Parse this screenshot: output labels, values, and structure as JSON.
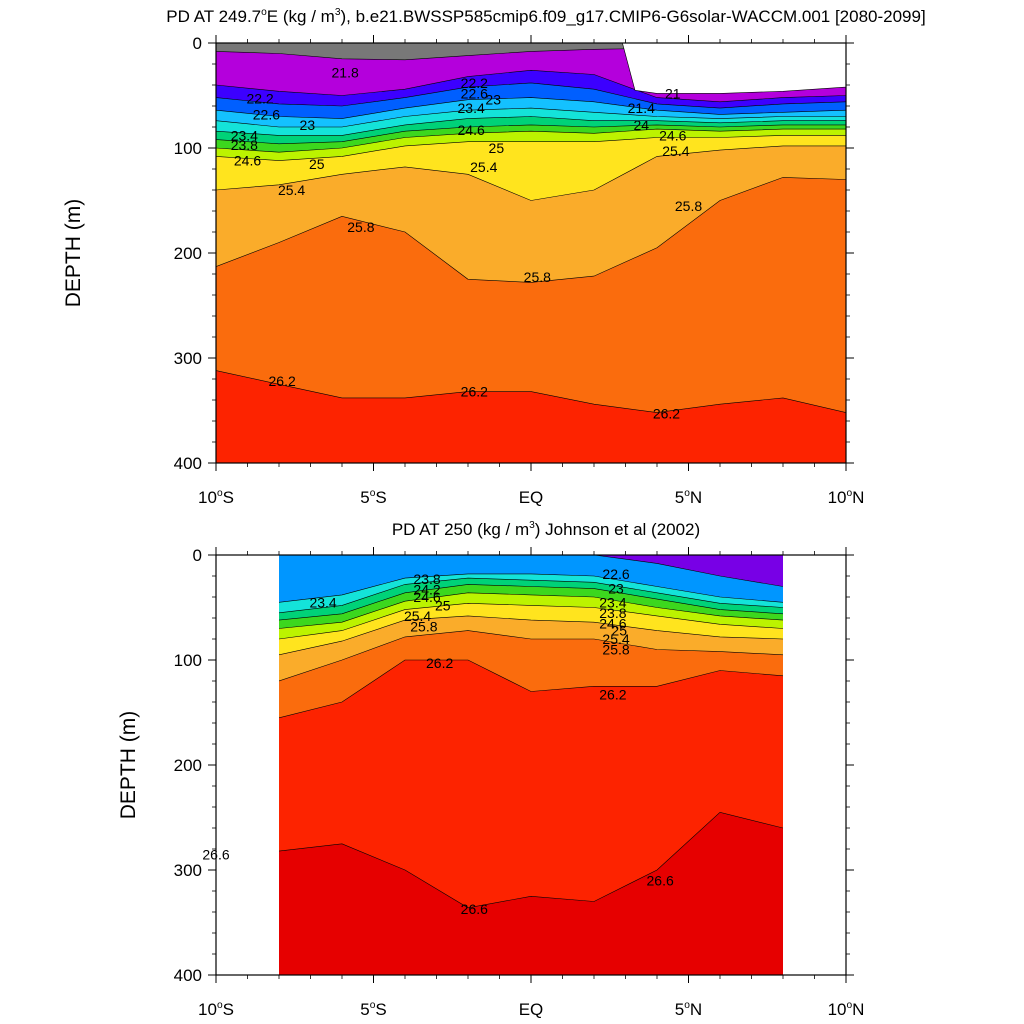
{
  "figure": {
    "background": "#ffffff"
  },
  "chart_data": [
    {
      "type": "contour",
      "title_parts": [
        "PD AT 249.7",
        "o",
        "E (kg / m",
        "3",
        "), b.e21.BWSSP585cmip6.f09_g17.CMIP6-G6solar-WACCM.001 [2080-2099]"
      ],
      "xlabel": "",
      "ylabel": "DEPTH (m)",
      "xlim": [
        -10,
        10
      ],
      "ylim": [
        400,
        0
      ],
      "x_ticks": [
        {
          "value": -10,
          "parts": [
            "10",
            "o",
            "S"
          ]
        },
        {
          "value": -5,
          "parts": [
            "5",
            "o",
            "S"
          ]
        },
        {
          "value": 0,
          "parts": [
            "EQ"
          ]
        },
        {
          "value": 5,
          "parts": [
            "5",
            "o",
            "N"
          ]
        },
        {
          "value": 10,
          "parts": [
            "10",
            "o",
            "N"
          ]
        }
      ],
      "y_ticks": [
        0,
        100,
        200,
        300,
        400
      ],
      "x_extent": [
        -10,
        10
      ],
      "data_mask_top": [
        [
          2.9,
          0
        ],
        [
          3.3,
          45
        ],
        [
          4,
          48
        ],
        [
          6,
          48
        ],
        [
          8,
          46
        ],
        [
          10,
          42
        ]
      ],
      "levels": [
        21.0,
        21.2,
        21.4,
        21.6,
        21.8,
        22.0,
        22.2,
        22.4,
        22.6,
        22.8,
        23.0,
        23.2,
        23.4,
        23.6,
        23.8,
        24.0,
        24.2,
        24.4,
        24.6,
        24.8,
        25.0,
        25.2,
        25.4,
        25.6,
        25.8,
        26.0,
        26.2,
        26.4,
        26.6
      ],
      "contour_depths": {
        "x": [
          -10,
          -8,
          -6,
          -4,
          -2,
          0,
          2,
          4,
          6,
          8,
          10
        ],
        "iso": [
          {
            "value": 21.8,
            "depth": [
              8,
              10,
              15,
              16,
              12,
              8,
              6,
              5,
              4,
              4,
              4
            ]
          },
          {
            "value": 22.2,
            "depth": [
              40,
              46,
              50,
              44,
              32,
              26,
              30,
              52,
              56,
              52,
              50
            ]
          },
          {
            "value": 22.6,
            "depth": [
              52,
              58,
              60,
              52,
              42,
              38,
              44,
              58,
              62,
              58,
              56
            ]
          },
          {
            "value": 23.0,
            "depth": [
              64,
              70,
              72,
              62,
              54,
              52,
              56,
              64,
              68,
              66,
              64
            ]
          },
          {
            "value": 23.4,
            "depth": [
              74,
              80,
              80,
              70,
              64,
              62,
              66,
              70,
              72,
              70,
              70
            ]
          },
          {
            "value": 23.8,
            "depth": [
              84,
              88,
              88,
              78,
              72,
              70,
              74,
              74,
              76,
              74,
              74
            ]
          },
          {
            "value": 24.2,
            "depth": [
              92,
              96,
              94,
              84,
              80,
              78,
              80,
              78,
              80,
              78,
              78
            ]
          },
          {
            "value": 24.6,
            "depth": [
              100,
              104,
              100,
              90,
              86,
              84,
              86,
              82,
              84,
              82,
              82
            ]
          },
          {
            "value": 25.0,
            "depth": [
              108,
              112,
              108,
              98,
              94,
              94,
              94,
              90,
              90,
              88,
              88
            ]
          },
          {
            "value": 25.4,
            "depth": [
              140,
              135,
              125,
              118,
              125,
              150,
              140,
              108,
              102,
              98,
              98
            ]
          },
          {
            "value": 25.8,
            "depth": [
              213,
              190,
              165,
              180,
              225,
              228,
              222,
              195,
              150,
              128,
              130
            ]
          },
          {
            "value": 26.2,
            "depth": [
              312,
              325,
              338,
              338,
              332,
              332,
              344,
              352,
              344,
              338,
              352
            ]
          }
        ]
      },
      "contour_labels": [
        {
          "text": "21.8",
          "x": -5.9,
          "depth": 28
        },
        {
          "text": "22.2",
          "x": -8.6,
          "depth": 53
        },
        {
          "text": "22.2",
          "x": -1.8,
          "depth": 38
        },
        {
          "text": "22.6",
          "x": -8.4,
          "depth": 68
        },
        {
          "text": "22.6",
          "x": -1.8,
          "depth": 48
        },
        {
          "text": "23",
          "x": -7.1,
          "depth": 78
        },
        {
          "text": "23",
          "x": -1.2,
          "depth": 54
        },
        {
          "text": "23.4",
          "x": -9.1,
          "depth": 88
        },
        {
          "text": "23.4",
          "x": -1.9,
          "depth": 62
        },
        {
          "text": "23.8",
          "x": -9.1,
          "depth": 97
        },
        {
          "text": "24.6",
          "x": -9.0,
          "depth": 112
        },
        {
          "text": "24.6",
          "x": -1.9,
          "depth": 83
        },
        {
          "text": "25",
          "x": -6.8,
          "depth": 115
        },
        {
          "text": "25",
          "x": -1.1,
          "depth": 100
        },
        {
          "text": "25.4",
          "x": -7.6,
          "depth": 140
        },
        {
          "text": "25.4",
          "x": -1.5,
          "depth": 118
        },
        {
          "text": "25.4",
          "x": 4.6,
          "depth": 103
        },
        {
          "text": "25.8",
          "x": -5.4,
          "depth": 175
        },
        {
          "text": "25.8",
          "x": 0.2,
          "depth": 223
        },
        {
          "text": "25.8",
          "x": 5.0,
          "depth": 155
        },
        {
          "text": "26.2",
          "x": -7.9,
          "depth": 322
        },
        {
          "text": "26.2",
          "x": -1.8,
          "depth": 332
        },
        {
          "text": "26.2",
          "x": 4.3,
          "depth": 353
        },
        {
          "text": "21",
          "x": 4.5,
          "depth": 48
        },
        {
          "text": "21.4",
          "x": 3.5,
          "depth": 62
        },
        {
          "text": "24",
          "x": 3.5,
          "depth": 78
        },
        {
          "text": "24.6",
          "x": 4.5,
          "depth": 88
        }
      ]
    },
    {
      "type": "contour",
      "title_parts": [
        "PD AT 250 (kg / m",
        "3",
        ") Johnson et al (2002)"
      ],
      "xlabel": "",
      "ylabel": "DEPTH (m)",
      "xlim": [
        -10,
        10
      ],
      "ylim": [
        400,
        0
      ],
      "x_ticks": [
        {
          "value": -10,
          "parts": [
            "10",
            "o",
            "S"
          ]
        },
        {
          "value": -5,
          "parts": [
            "5",
            "o",
            "S"
          ]
        },
        {
          "value": 0,
          "parts": [
            "EQ"
          ]
        },
        {
          "value": 5,
          "parts": [
            "5",
            "o",
            "N"
          ]
        },
        {
          "value": 10,
          "parts": [
            "10",
            "o",
            "N"
          ]
        }
      ],
      "y_ticks": [
        0,
        100,
        200,
        300,
        400
      ],
      "x_extent": [
        -8,
        8
      ],
      "levels": [
        21.0,
        21.4,
        21.8,
        22.2,
        22.6,
        23.0,
        23.4,
        23.8,
        24.2,
        24.6,
        25.0,
        25.4,
        25.8,
        26.2,
        26.6
      ],
      "contour_depths": {
        "x": [
          -8,
          -6,
          -4,
          -2,
          0,
          2,
          4,
          6,
          8
        ],
        "iso": [
          {
            "value": 22.6,
            "depth": [
              0,
              0,
              0,
              0,
              0,
              0,
              8,
              20,
              30
            ]
          },
          {
            "value": 23.4,
            "depth": [
              45,
              38,
              22,
              18,
              18,
              20,
              30,
              40,
              45
            ]
          },
          {
            "value": 23.8,
            "depth": [
              55,
              48,
              28,
              22,
              24,
              26,
              36,
              46,
              50
            ]
          },
          {
            "value": 24.2,
            "depth": [
              62,
              56,
              36,
              28,
              30,
              32,
              42,
              52,
              56
            ]
          },
          {
            "value": 24.6,
            "depth": [
              70,
              64,
              44,
              36,
              38,
              40,
              50,
              58,
              62
            ]
          },
          {
            "value": 25.0,
            "depth": [
              80,
              72,
              52,
              46,
              48,
              50,
              58,
              66,
              70
            ]
          },
          {
            "value": 25.4,
            "depth": [
              95,
              82,
              62,
              58,
              62,
              64,
              72,
              78,
              80
            ]
          },
          {
            "value": 25.8,
            "depth": [
              120,
              100,
              78,
              72,
              80,
              80,
              90,
              92,
              95
            ]
          },
          {
            "value": 26.2,
            "depth": [
              155,
              140,
              100,
              100,
              130,
              125,
              125,
              110,
              115
            ]
          },
          {
            "value": 26.6,
            "depth": [
              282,
              275,
              300,
              336,
              325,
              330,
              300,
              245,
              260
            ]
          }
        ]
      },
      "contour_labels": [
        {
          "text": "23.4",
          "x": -6.6,
          "depth": 45
        },
        {
          "text": "23.8",
          "x": -3.3,
          "depth": 23
        },
        {
          "text": "24.2",
          "x": -3.3,
          "depth": 33
        },
        {
          "text": "24.6",
          "x": -3.3,
          "depth": 40
        },
        {
          "text": "25",
          "x": -2.8,
          "depth": 48
        },
        {
          "text": "25.4",
          "x": -3.6,
          "depth": 58
        },
        {
          "text": "25.8",
          "x": -3.4,
          "depth": 68
        },
        {
          "text": "26.2",
          "x": -2.9,
          "depth": 103
        },
        {
          "text": "22.6",
          "x": 2.7,
          "depth": 18
        },
        {
          "text": "23",
          "x": 2.7,
          "depth": 32
        },
        {
          "text": "23.4",
          "x": 2.6,
          "depth": 45
        },
        {
          "text": "23.8",
          "x": 2.6,
          "depth": 55
        },
        {
          "text": "24.6",
          "x": 2.6,
          "depth": 65
        },
        {
          "text": "25",
          "x": 2.8,
          "depth": 72
        },
        {
          "text": "25.4",
          "x": 2.7,
          "depth": 80
        },
        {
          "text": "25.8",
          "x": 2.7,
          "depth": 90
        },
        {
          "text": "26.2",
          "x": 2.6,
          "depth": 133
        },
        {
          "text": "26.6",
          "x": -10.0,
          "depth": 285
        },
        {
          "text": "26.6",
          "x": -1.8,
          "depth": 337
        },
        {
          "text": "26.6",
          "x": 4.1,
          "depth": 310
        }
      ]
    }
  ]
}
